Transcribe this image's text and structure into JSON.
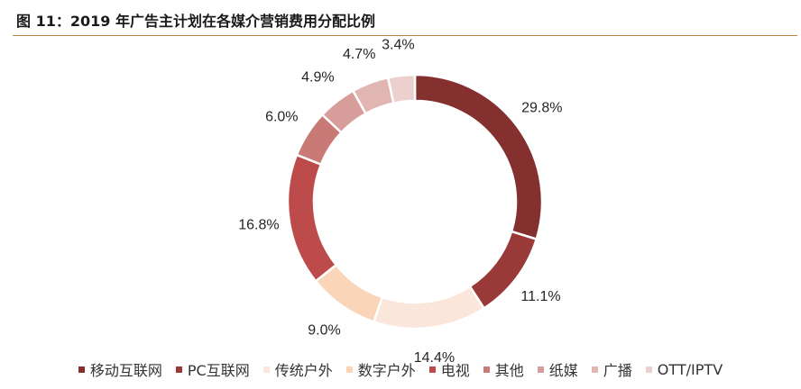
{
  "figure": {
    "title": "图 11：2019 年广告主计划在各媒介营销费用分配比例"
  },
  "chart_data": {
    "type": "pie",
    "subtype": "donut",
    "title": "图 11：2019 年广告主计划在各媒介营销费用分配比例",
    "categories": [
      "移动互联网",
      "PC互联网",
      "传统户外",
      "数字户外",
      "电视",
      "其他",
      "纸媒",
      "广播",
      "OTT/IPTV"
    ],
    "values": [
      29.8,
      11.1,
      14.4,
      9.0,
      16.8,
      6.0,
      4.9,
      4.7,
      3.4
    ],
    "data_labels": [
      "29.8%",
      "11.1%",
      "14.4%",
      "9.0%",
      "16.8%",
      "6.0%",
      "4.9%",
      "4.7%",
      "3.4%"
    ],
    "colors": [
      "#84302f",
      "#9a3a38",
      "#fbe6dc",
      "#fad5b7",
      "#be4b4b",
      "#c97a76",
      "#d79d9a",
      "#e1b6b2",
      "#ebd0cd"
    ],
    "legend_position": "bottom",
    "start": "top",
    "direction": "clockwise"
  }
}
